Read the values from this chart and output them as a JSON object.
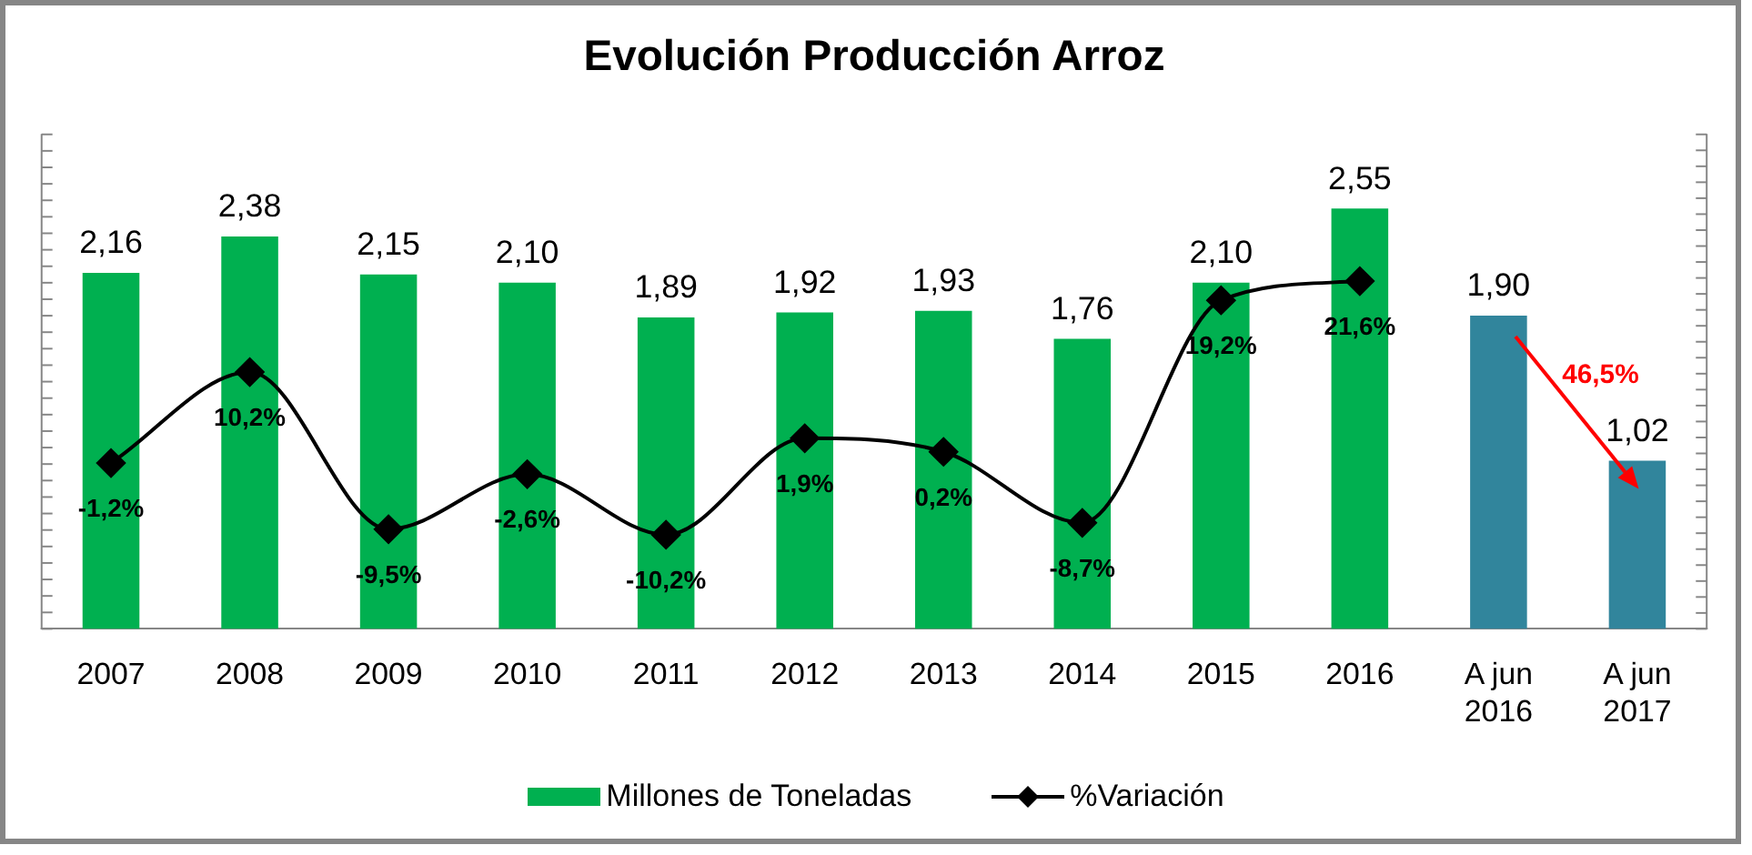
{
  "chart_data": {
    "type": "bar",
    "title": "Evolución Producción Arroz",
    "categories": [
      "2007",
      "2008",
      "2009",
      "2010",
      "2011",
      "2012",
      "2013",
      "2014",
      "2015",
      "2016",
      "A jun 2016",
      "A jun 2017"
    ],
    "series": [
      {
        "name": "Millones de Toneladas",
        "color": "#00b050",
        "colors": [
          "#00b050",
          "#00b050",
          "#00b050",
          "#00b050",
          "#00b050",
          "#00b050",
          "#00b050",
          "#00b050",
          "#00b050",
          "#00b050",
          "#31859c",
          "#31859c"
        ],
        "values": [
          2.16,
          2.38,
          2.15,
          2.1,
          1.89,
          1.92,
          1.93,
          1.76,
          2.1,
          2.55,
          1.9,
          1.02
        ],
        "value_labels": [
          "2,16",
          "2,38",
          "2,15",
          "2,10",
          "1,89",
          "1,92",
          "1,93",
          "1,76",
          "2,10",
          "2,55",
          "1,90",
          "1,02"
        ]
      },
      {
        "name": "%Variación",
        "type": "line",
        "axis": "y2",
        "color": "#000000",
        "marker": "diamond",
        "values": [
          -1.2,
          10.2,
          -9.5,
          -2.6,
          -10.2,
          1.9,
          0.2,
          -8.7,
          19.2,
          21.6,
          null,
          null
        ],
        "value_labels": [
          "-1,2%",
          "10,2%",
          "-9,5%",
          "-2,6%",
          "-10,2%",
          "1,9%",
          "0,2%",
          "-8,7%",
          "19,2%",
          "21,6%",
          null,
          null
        ]
      }
    ],
    "ylim": [
      0,
      3
    ],
    "yticks": [
      {
        "value": 0,
        "label": null
      },
      {
        "value": 0.1,
        "label": null
      },
      {
        "value": 0.2,
        "label": null
      },
      {
        "value": 0.3,
        "label": null
      },
      {
        "value": 0.4,
        "label": null
      },
      {
        "value": 0.5,
        "label": null
      },
      {
        "value": 0.6,
        "label": null
      },
      {
        "value": 0.7,
        "label": null
      },
      {
        "value": 0.8,
        "label": null
      },
      {
        "value": 0.9,
        "label": null
      },
      {
        "value": 1,
        "label": null
      },
      {
        "value": 1.1,
        "label": null
      },
      {
        "value": 1.2,
        "label": null
      },
      {
        "value": 1.3,
        "label": null
      },
      {
        "value": 1.4,
        "label": null
      },
      {
        "value": 1.5,
        "label": null
      },
      {
        "value": 1.6,
        "label": null
      },
      {
        "value": 1.7,
        "label": null
      },
      {
        "value": 1.8,
        "label": null
      },
      {
        "value": 1.9,
        "label": null
      },
      {
        "value": 2,
        "label": null
      },
      {
        "value": 2.1,
        "label": null
      },
      {
        "value": 2.2,
        "label": null
      },
      {
        "value": 2.3,
        "label": null
      },
      {
        "value": 2.4,
        "label": null
      },
      {
        "value": 2.5,
        "label": null
      },
      {
        "value": 2.6,
        "label": null
      },
      {
        "value": 2.7,
        "label": null
      },
      {
        "value": 2.8,
        "label": null
      },
      {
        "value": 2.9,
        "label": null
      },
      {
        "value": 3,
        "label": null
      }
    ],
    "y2lim": [
      -22,
      40
    ],
    "y2ticks": [
      {
        "value": -22,
        "label": null
      },
      {
        "value": -20,
        "label": null
      },
      {
        "value": -18,
        "label": null
      },
      {
        "value": -16,
        "label": null
      },
      {
        "value": -14,
        "label": null
      },
      {
        "value": -12,
        "label": null
      },
      {
        "value": -10,
        "label": null
      },
      {
        "value": -8,
        "label": null
      },
      {
        "value": -6,
        "label": null
      },
      {
        "value": -4,
        "label": null
      },
      {
        "value": -2,
        "label": null
      },
      {
        "value": 0,
        "label": null
      },
      {
        "value": 2,
        "label": null
      },
      {
        "value": 4,
        "label": null
      },
      {
        "value": 6,
        "label": null
      },
      {
        "value": 8,
        "label": null
      },
      {
        "value": 10,
        "label": null
      },
      {
        "value": 12,
        "label": null
      },
      {
        "value": 14,
        "label": null
      },
      {
        "value": 16,
        "label": null
      },
      {
        "value": 18,
        "label": null
      },
      {
        "value": 20,
        "label": null
      },
      {
        "value": 22,
        "label": null
      },
      {
        "value": 24,
        "label": null
      },
      {
        "value": 26,
        "label": null
      },
      {
        "value": 28,
        "label": null
      },
      {
        "value": 30,
        "label": null
      },
      {
        "value": 32,
        "label": null
      },
      {
        "value": 34,
        "label": null
      },
      {
        "value": 36,
        "label": null
      },
      {
        "value": 38,
        "label": null
      },
      {
        "value": 40,
        "label": null
      }
    ],
    "tick_labels": "x",
    "grid": false,
    "legend": "bottom",
    "annotations": [
      "46,5%"
    ]
  }
}
